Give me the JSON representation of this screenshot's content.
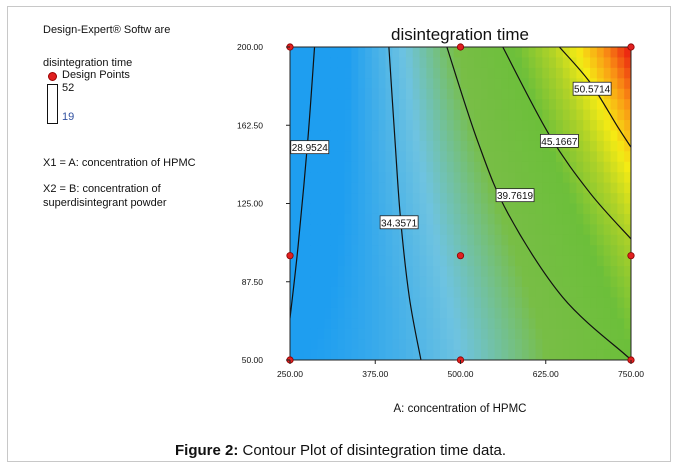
{
  "software": "Design-Expert® Softw are",
  "response_label": "disintegration time",
  "design_points_label": "Design Points",
  "range_high": "52",
  "range_low": "19",
  "x1_label": "X1 = A: concentration of  HPMC",
  "x2_label_line1": "X2 = B: concentration of",
  "x2_label_line2": "superdisintegrant powder",
  "caption_prefix": "Figure 2:",
  "caption_text": " Contour Plot of disintegration time data.",
  "colors": {
    "low": "#1e9ef0",
    "mid": "#6cbf3a",
    "high": "#e81010",
    "point": "#e02020"
  },
  "chart_data": {
    "type": "heatmap",
    "title": "disintegration time",
    "xlabel": "A: concentration of  HPMC",
    "ylabel": "",
    "xlim": [
      250,
      750
    ],
    "ylim": [
      50,
      200
    ],
    "x_ticks": [
      "250.00",
      "375.00",
      "500.00",
      "625.00",
      "750.00"
    ],
    "y_ticks": [
      "50.00",
      "87.50",
      "125.00",
      "162.50",
      "200.00"
    ],
    "contours": [
      {
        "label": "28.9524",
        "level": 28.9524,
        "points": [
          [
            286,
            200
          ],
          [
            276,
            155
          ],
          [
            262,
            105
          ],
          [
            250,
            70
          ]
        ],
        "label_at": [
          279,
          152
        ]
      },
      {
        "label": "34.3571",
        "level": 34.3571,
        "points": [
          [
            395,
            200
          ],
          [
            404,
            155
          ],
          [
            412,
            118
          ],
          [
            425,
            80
          ],
          [
            442,
            50
          ]
        ],
        "label_at": [
          410,
          116
        ]
      },
      {
        "label": "39.7619",
        "level": 39.7619,
        "points": [
          [
            480,
            200
          ],
          [
            525,
            155
          ],
          [
            570,
            120
          ],
          [
            650,
            80
          ],
          [
            740,
            53
          ],
          [
            750,
            51
          ]
        ],
        "label_at": [
          580,
          129
        ]
      },
      {
        "label": "45.1667",
        "level": 45.1667,
        "points": [
          [
            562,
            200
          ],
          [
            630,
            158
          ],
          [
            690,
            130
          ],
          [
            750,
            108
          ]
        ],
        "label_at": [
          645,
          155
        ]
      },
      {
        "label": "50.5714",
        "level": 50.5714,
        "points": [
          [
            645,
            200
          ],
          [
            690,
            183
          ],
          [
            730,
            162
          ],
          [
            750,
            152
          ]
        ],
        "label_at": [
          693,
          180
        ]
      }
    ],
    "design_points": [
      [
        250,
        200
      ],
      [
        500,
        200
      ],
      [
        750,
        200
      ],
      [
        250,
        100
      ],
      [
        500,
        100
      ],
      [
        750,
        100
      ],
      [
        250,
        50
      ],
      [
        500,
        50
      ],
      [
        750,
        50
      ]
    ]
  }
}
